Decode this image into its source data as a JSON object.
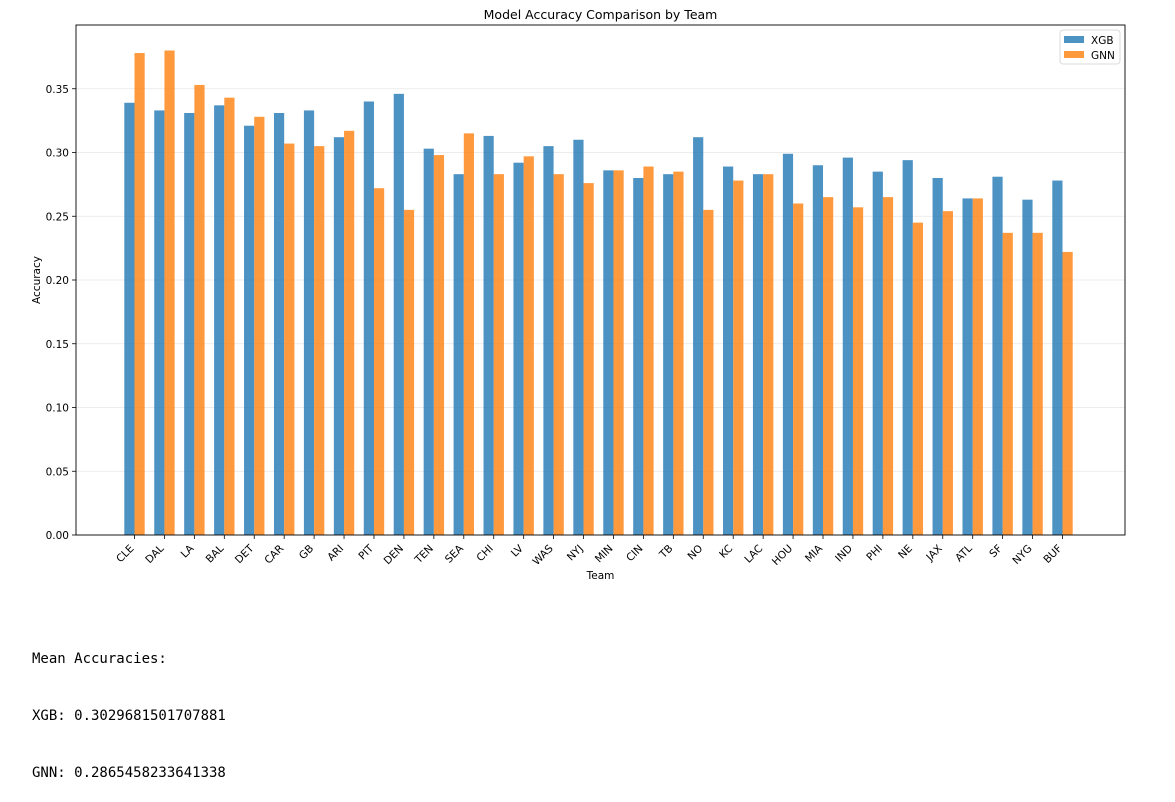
{
  "chart_data": {
    "type": "bar",
    "title": "Model Accuracy Comparison by Team",
    "xlabel": "Team",
    "ylabel": "Accuracy",
    "ylim": [
      0,
      0.4
    ],
    "yticks": [
      "0.00",
      "0.05",
      "0.10",
      "0.15",
      "0.20",
      "0.25",
      "0.30",
      "0.35"
    ],
    "grid": true,
    "legend_position": "top-right",
    "categories": [
      "CLE",
      "DAL",
      "LA",
      "BAL",
      "DET",
      "CAR",
      "GB",
      "ARI",
      "PIT",
      "DEN",
      "TEN",
      "SEA",
      "CHI",
      "LV",
      "WAS",
      "NYJ",
      "MIN",
      "CIN",
      "TB",
      "NO",
      "KC",
      "LAC",
      "HOU",
      "MIA",
      "IND",
      "PHI",
      "NE",
      "JAX",
      "ATL",
      "SF",
      "NYG",
      "BUF"
    ],
    "series": [
      {
        "name": "XGB",
        "color": "#1f77b4",
        "values": [
          0.339,
          0.333,
          0.331,
          0.337,
          0.321,
          0.331,
          0.333,
          0.312,
          0.34,
          0.346,
          0.303,
          0.283,
          0.313,
          0.292,
          0.305,
          0.31,
          0.286,
          0.28,
          0.283,
          0.312,
          0.289,
          0.283,
          0.299,
          0.29,
          0.296,
          0.285,
          0.294,
          0.28,
          0.264,
          0.281,
          0.263,
          0.278
        ]
      },
      {
        "name": "GNN",
        "color": "#ff7f0e",
        "values": [
          0.378,
          0.38,
          0.353,
          0.343,
          0.328,
          0.307,
          0.305,
          0.317,
          0.272,
          0.255,
          0.298,
          0.315,
          0.283,
          0.297,
          0.283,
          0.276,
          0.286,
          0.289,
          0.285,
          0.255,
          0.278,
          0.283,
          0.26,
          0.265,
          0.257,
          0.265,
          0.245,
          0.254,
          0.264,
          0.237,
          0.237,
          0.222
        ]
      }
    ]
  },
  "output": {
    "header": "Mean Accuracies:",
    "xgb_line": "XGB: 0.3029681501707881",
    "gnn_line": "GNN: 0.2865458233641338"
  }
}
